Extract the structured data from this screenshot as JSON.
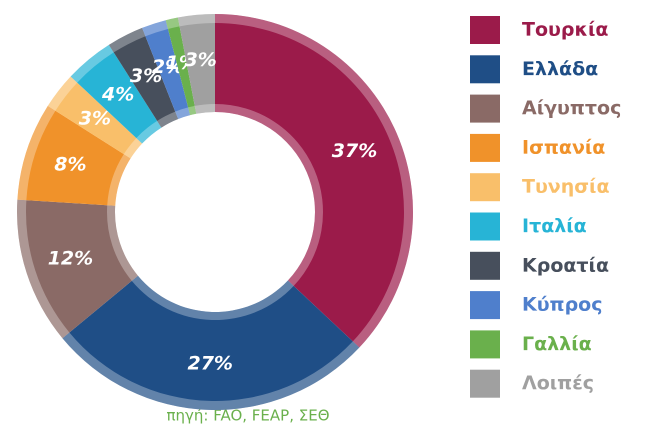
{
  "chart_data": {
    "type": "donut",
    "categories": [
      "Τουρκία",
      "Ελλάδα",
      "Αίγυπτος",
      "Ισπανία",
      "Τυνησία",
      "Ιταλία",
      "Κροατία",
      "Κύπρος",
      "Γαλλία",
      "Λοιπές"
    ],
    "values": [
      37,
      27,
      12,
      8,
      3,
      4,
      3,
      2,
      1,
      3
    ],
    "value_labels": [
      "37%",
      "27%",
      "12%",
      "8%",
      "3%",
      "4%",
      "3%",
      "2%",
      "1%",
      "3%"
    ],
    "colors": [
      "#9b1b4a",
      "#1f4e86",
      "#8a6a66",
      "#f0922a",
      "#f9bf6a",
      "#27b4d6",
      "#474f5c",
      "#4f7fcc",
      "#6ab04c",
      "#a0a0a0"
    ],
    "source": "πηγή: FAO, FEAP, ΣΕΘ",
    "legend": "right"
  }
}
